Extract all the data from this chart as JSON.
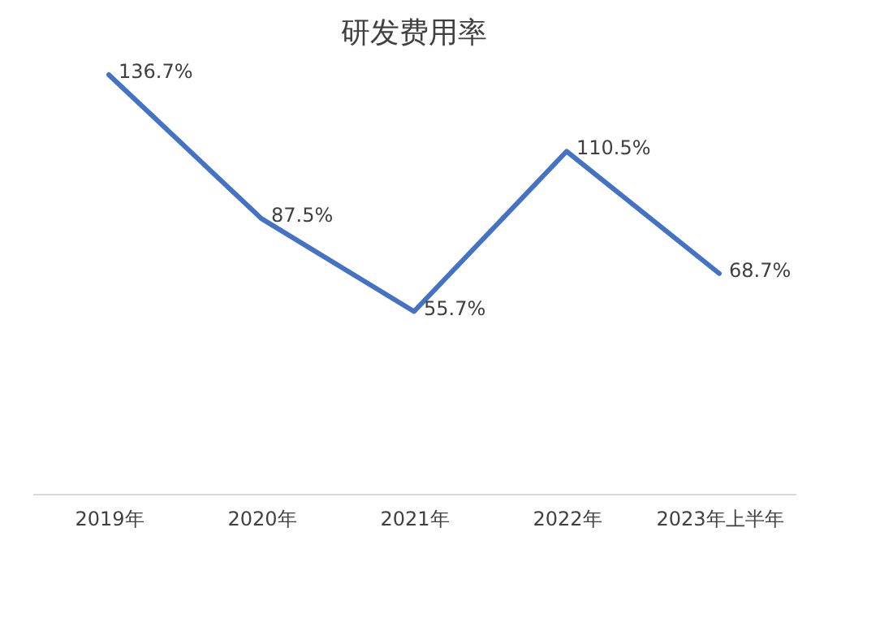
{
  "chart_data": {
    "type": "line",
    "title": "研发费用率",
    "categories": [
      "2019年",
      "2020年",
      "2021年",
      "2022年",
      "2023年上半年"
    ],
    "series": [
      {
        "color": "#4472c4",
        "values": [
          136.7,
          87.5,
          55.7,
          110.5,
          68.7
        ],
        "value_labels": [
          "136.7%",
          "87.5%",
          "55.7%",
          "110.5%",
          "68.7%"
        ]
      }
    ],
    "grid": false,
    "marker": "none",
    "line_style": "solid"
  }
}
